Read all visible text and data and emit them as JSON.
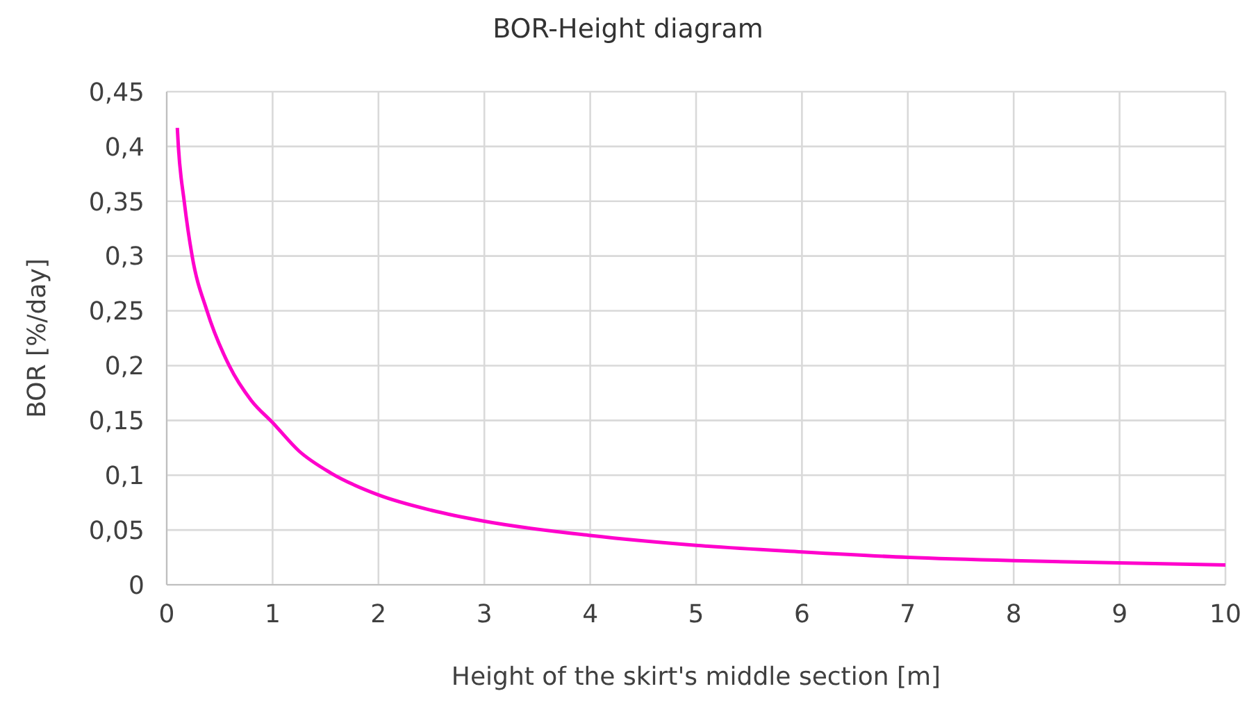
{
  "chart_data": {
    "type": "line",
    "title": "BOR-Height diagram",
    "xlabel": "Height of the skirt's middle section [m]",
    "ylabel": "BOR [%/day]",
    "x": [
      0.1,
      0.11,
      0.165,
      0.24,
      0.38,
      0.59,
      0.8,
      1,
      1.25,
      1.55,
      2,
      2.5,
      3,
      4,
      5,
      6,
      7,
      8,
      9,
      10
    ],
    "series": [
      {
        "color": "#ff00cc",
        "values": [
          0.417,
          0.4,
          0.35,
          0.3,
          0.25,
          0.2,
          0.168,
          0.148,
          0.122,
          0.102,
          0.082,
          0.068,
          0.058,
          0.045,
          0.036,
          0.03,
          0.025,
          0.022,
          0.02,
          0.018
        ]
      }
    ],
    "xlim": [
      0,
      10
    ],
    "xticks": [
      0,
      1,
      2,
      3,
      4,
      5,
      6,
      7,
      8,
      9,
      10
    ],
    "ylim": [
      0,
      0.45
    ],
    "yticks": [
      0,
      {
        "value": 0.05,
        "label": "0,05"
      },
      {
        "value": 0.1,
        "label": "0,1"
      },
      {
        "value": 0.15,
        "label": "0,15"
      },
      {
        "value": 0.2,
        "label": "0,2"
      },
      {
        "value": 0.25,
        "label": "0,25"
      },
      {
        "value": 0.3,
        "label": "0,3"
      },
      {
        "value": 0.35,
        "label": "0,35"
      },
      {
        "value": 0.4,
        "label": "0,4"
      },
      {
        "value": 0.45,
        "label": "0,45"
      }
    ],
    "grid": true,
    "legend": false,
    "marker": "none",
    "line_style": "solid"
  }
}
